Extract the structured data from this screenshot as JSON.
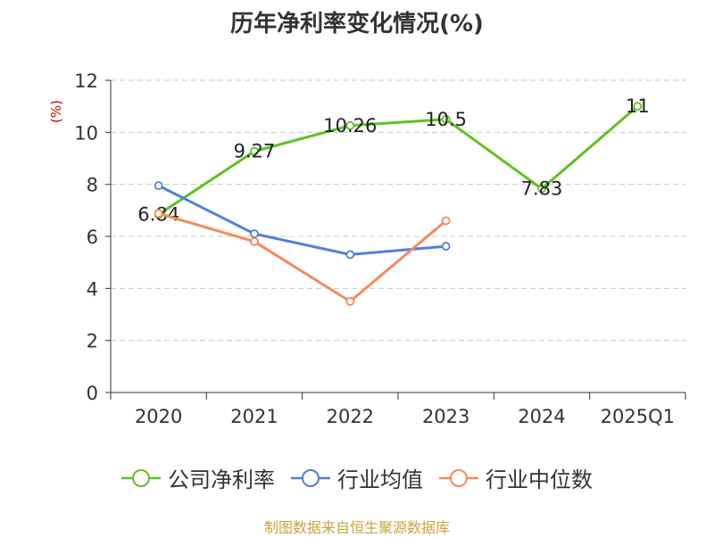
{
  "title": "历年净利率变化情况(%)",
  "source": "制图数据来自恒生聚源数据库",
  "colors": {
    "source": "#c9a33c",
    "ylabel": "#cc0000",
    "grid": "#c8c8c8",
    "axis": "#333333",
    "text": "#333333"
  },
  "chart_data": {
    "type": "line",
    "title": "历年净利率变化情况(%)",
    "ylabel": "(%)",
    "xlabel": "",
    "categories": [
      "2020",
      "2021",
      "2022",
      "2023",
      "2024",
      "2025Q1"
    ],
    "ylim": [
      0,
      12
    ],
    "yticks": [
      0,
      2,
      4,
      6,
      8,
      10,
      12
    ],
    "grid": true,
    "legend": "bottom",
    "series": [
      {
        "name": "公司净利率",
        "color": "#5ec123",
        "values": [
          6.84,
          9.27,
          10.26,
          10.5,
          7.83,
          11
        ],
        "labels": [
          "6.84",
          "9.27",
          "10.26",
          "10.5",
          "7.83",
          "11"
        ],
        "show_labels": true
      },
      {
        "name": "行业均值",
        "color": "#4f7fdb",
        "values": [
          7.95,
          6.1,
          5.3,
          5.62,
          null,
          null
        ],
        "show_labels": false
      },
      {
        "name": "行业中位数",
        "color": "#f48a5a",
        "values": [
          6.88,
          5.8,
          3.5,
          6.6,
          null,
          null
        ],
        "show_labels": false
      }
    ]
  }
}
